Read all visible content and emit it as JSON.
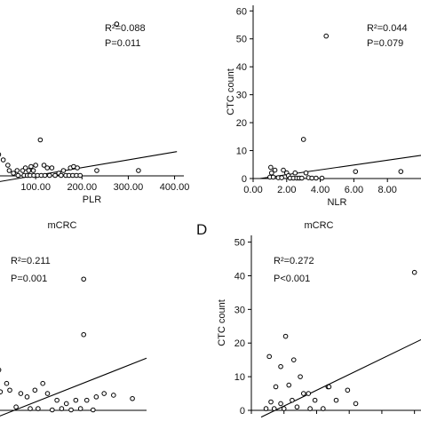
{
  "chart_data": [
    {
      "id": "plr",
      "type": "scatter",
      "title": "",
      "panel_letter": "",
      "xlabel": "PLR",
      "ylabel": "",
      "xlim": [
        0,
        420
      ],
      "ylim": [
        0,
        64
      ],
      "x_ticks": [
        100,
        200,
        300,
        400
      ],
      "x_tick_labels": [
        "100.00",
        "200.00",
        "300.00",
        "400.00"
      ],
      "y_ticks": [],
      "y_tick_labels": [],
      "annotations": [
        "R²=0.088",
        "P=0.011"
      ],
      "fit": {
        "x": [
          0,
          405
        ],
        "y": [
          -2.8,
          9.1
        ]
      },
      "points": [
        [
          275,
          57
        ],
        [
          110,
          13.5
        ],
        [
          10,
          9
        ],
        [
          20,
          8
        ],
        [
          30,
          6
        ],
        [
          40,
          4
        ],
        [
          43,
          2
        ],
        [
          52,
          1
        ],
        [
          60,
          2
        ],
        [
          72,
          2
        ],
        [
          78,
          3
        ],
        [
          85,
          2
        ],
        [
          90,
          3.5
        ],
        [
          95,
          2
        ],
        [
          100,
          4
        ],
        [
          118,
          4
        ],
        [
          125,
          3
        ],
        [
          135,
          3
        ],
        [
          150,
          1
        ],
        [
          160,
          2
        ],
        [
          175,
          3
        ],
        [
          182,
          3.5
        ],
        [
          190,
          3
        ],
        [
          232,
          2
        ],
        [
          322,
          2
        ],
        [
          62,
          0
        ],
        [
          75,
          0
        ],
        [
          82,
          0
        ],
        [
          88,
          0
        ],
        [
          96,
          0
        ],
        [
          104,
          0
        ],
        [
          112,
          0
        ],
        [
          120,
          0
        ],
        [
          130,
          0
        ],
        [
          142,
          0
        ],
        [
          155,
          0
        ],
        [
          165,
          0
        ],
        [
          172,
          0
        ],
        [
          180,
          0
        ],
        [
          188,
          0
        ],
        [
          196,
          0
        ]
      ]
    },
    {
      "id": "nlr",
      "type": "scatter",
      "title": "",
      "panel_letter": "",
      "xlabel": "NLR",
      "ylabel": "CTC count",
      "xlim": [
        0,
        10
      ],
      "ylim": [
        0,
        62
      ],
      "x_ticks": [
        0,
        2,
        4,
        6,
        8
      ],
      "x_tick_labels": [
        "0.00",
        "2.00",
        "4.00",
        "6.00",
        "8.00"
      ],
      "y_ticks": [
        0,
        10,
        20,
        30,
        40,
        50,
        60
      ],
      "y_tick_labels": [
        "0",
        "10",
        "20",
        "30",
        "40",
        "50",
        "60"
      ],
      "annotations": [
        "R²=0.044",
        "P=0.079"
      ],
      "fit": {
        "x": [
          0.4,
          10
        ],
        "y": [
          0,
          8.3
        ]
      },
      "points": [
        [
          4.35,
          51
        ],
        [
          3.0,
          14
        ],
        [
          1.05,
          4
        ],
        [
          1.3,
          3
        ],
        [
          1.1,
          2
        ],
        [
          1.8,
          3
        ],
        [
          2.0,
          2
        ],
        [
          2.1,
          1
        ],
        [
          2.5,
          2
        ],
        [
          3.15,
          2
        ],
        [
          1.0,
          0.5
        ],
        [
          1.2,
          0.5
        ],
        [
          1.5,
          0.3
        ],
        [
          1.7,
          0.3
        ],
        [
          2.2,
          0
        ],
        [
          2.4,
          0
        ],
        [
          2.6,
          0
        ],
        [
          2.75,
          0
        ],
        [
          2.9,
          0
        ],
        [
          3.3,
          0.3
        ],
        [
          3.5,
          0
        ],
        [
          3.75,
          0
        ],
        [
          4.1,
          0
        ],
        [
          6.1,
          2.5
        ],
        [
          8.8,
          2.5
        ]
      ]
    },
    {
      "id": "mcrc-left",
      "type": "scatter",
      "title": "mCRC",
      "panel_letter": "",
      "xlabel": "",
      "ylabel": "",
      "xlim": [
        0,
        100
      ],
      "ylim": [
        0,
        52
      ],
      "x_ticks": [],
      "x_tick_labels": [],
      "y_ticks": [],
      "y_tick_labels": [],
      "annotations": [
        "R²=0.211",
        "P=0.001"
      ],
      "fit": {
        "x": [
          5,
          100
        ],
        "y": [
          -2,
          15.5
        ]
      },
      "points": [
        [
          60,
          39
        ],
        [
          60,
          22.5
        ],
        [
          5,
          15
        ],
        [
          2,
          13.5
        ],
        [
          6,
          12
        ],
        [
          11,
          8
        ],
        [
          13,
          6
        ],
        [
          7,
          5.5
        ],
        [
          3,
          4
        ],
        [
          20,
          5
        ],
        [
          24,
          4
        ],
        [
          29,
          6
        ],
        [
          34,
          8
        ],
        [
          37,
          5
        ],
        [
          43,
          3
        ],
        [
          49,
          2
        ],
        [
          55,
          3
        ],
        [
          62,
          3
        ],
        [
          68,
          4
        ],
        [
          73,
          5
        ],
        [
          79,
          4.5
        ],
        [
          91,
          3.5
        ],
        [
          17,
          1
        ],
        [
          26,
          0.5
        ],
        [
          31,
          0.5
        ],
        [
          40,
          0
        ],
        [
          46,
          0.5
        ],
        [
          52,
          0
        ],
        [
          58,
          0.5
        ],
        [
          66,
          0
        ]
      ]
    },
    {
      "id": "mcrc-right",
      "type": "scatter",
      "title": "mCRC",
      "panel_letter": "D",
      "xlabel": "",
      "ylabel": "CTC count",
      "xlim": [
        0,
        5.2
      ],
      "ylim": [
        0,
        52
      ],
      "x_ticks": [
        0,
        1,
        2,
        3,
        4,
        5
      ],
      "x_tick_labels": [],
      "y_ticks": [
        0,
        10,
        20,
        30,
        40,
        50
      ],
      "y_tick_labels": [
        "0",
        "10",
        "20",
        "30",
        "40",
        "50"
      ],
      "annotations": [
        "R²=0.272",
        "P<0.001"
      ],
      "fit": {
        "x": [
          0.3,
          5.2
        ],
        "y": [
          -2,
          21
        ]
      },
      "points": [
        [
          5.0,
          41
        ],
        [
          1.05,
          22
        ],
        [
          0.55,
          16
        ],
        [
          1.3,
          15
        ],
        [
          0.9,
          13
        ],
        [
          1.5,
          10
        ],
        [
          0.75,
          7
        ],
        [
          1.15,
          7.5
        ],
        [
          1.6,
          5
        ],
        [
          1.75,
          5
        ],
        [
          0.6,
          2.5
        ],
        [
          0.9,
          2
        ],
        [
          1.25,
          3
        ],
        [
          1.95,
          3
        ],
        [
          2.35,
          7
        ],
        [
          2.38,
          7
        ],
        [
          2.95,
          6
        ],
        [
          3.2,
          2
        ],
        [
          2.6,
          3
        ],
        [
          0.45,
          0.5
        ],
        [
          0.7,
          0.5
        ],
        [
          1.0,
          0.5
        ],
        [
          1.4,
          1
        ],
        [
          1.8,
          0.5
        ],
        [
          2.2,
          0.5
        ]
      ]
    }
  ]
}
